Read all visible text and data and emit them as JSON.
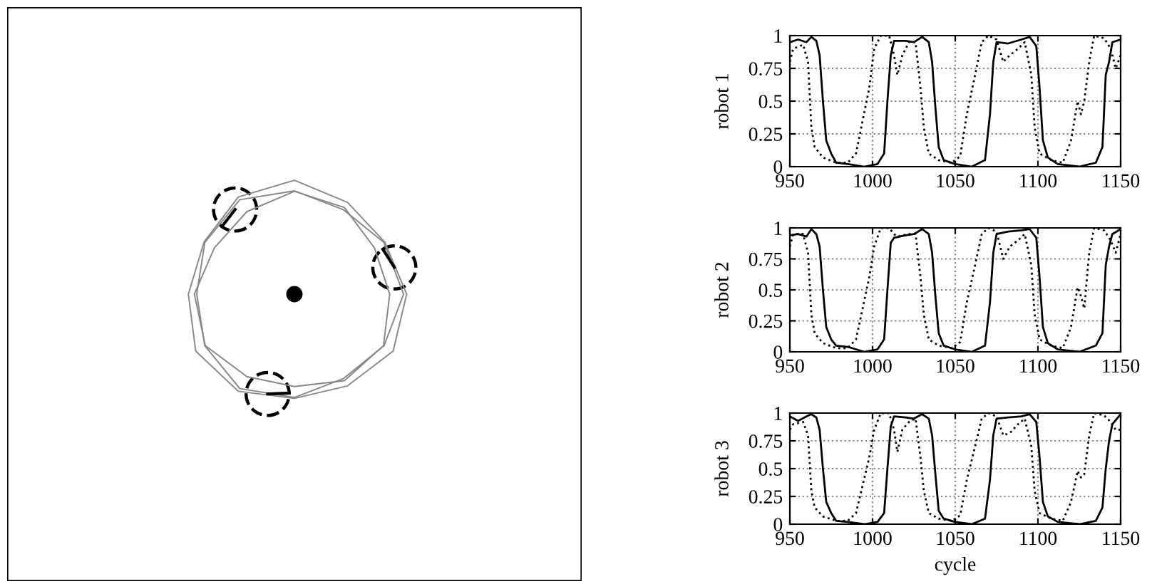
{
  "chart_data": [
    {
      "type": "line",
      "ylabel": "robot 1",
      "xlim": [
        950,
        1150
      ],
      "ylim": [
        0,
        1
      ],
      "xticks": [
        950,
        1000,
        1050,
        1100,
        1150
      ],
      "yticks": [
        0,
        0.25,
        0.5,
        0.75,
        1
      ],
      "grid": true,
      "series": [
        {
          "color": "#000000",
          "line_style": "solid",
          "x": [
            950,
            955,
            960,
            963,
            966,
            968,
            970,
            972,
            975,
            978,
            985,
            995,
            1003,
            1007,
            1009,
            1011,
            1013,
            1020,
            1025,
            1030,
            1034,
            1036,
            1038,
            1040,
            1043,
            1050,
            1060,
            1068,
            1071,
            1073,
            1075,
            1082,
            1090,
            1095,
            1099,
            1101,
            1103,
            1106,
            1112,
            1125,
            1135,
            1139,
            1141,
            1143,
            1145,
            1150
          ],
          "values": [
            0.95,
            0.97,
            0.95,
            0.99,
            0.96,
            0.85,
            0.5,
            0.2,
            0.1,
            0.03,
            0.02,
            0.0,
            0.02,
            0.1,
            0.5,
            0.85,
            0.96,
            0.96,
            0.95,
            0.99,
            0.95,
            0.8,
            0.45,
            0.15,
            0.05,
            0.02,
            0.0,
            0.05,
            0.4,
            0.8,
            0.95,
            0.94,
            0.97,
            0.99,
            0.92,
            0.6,
            0.2,
            0.07,
            0.02,
            0.0,
            0.03,
            0.15,
            0.7,
            0.8,
            0.95,
            0.97
          ]
        },
        {
          "color": "#000000",
          "line_style": "dotted",
          "x": [
            950,
            952,
            958,
            961,
            963,
            965,
            970,
            978,
            985,
            990,
            994,
            998,
            1001,
            1005,
            1010,
            1013,
            1015,
            1018,
            1022,
            1026,
            1029,
            1031,
            1034,
            1040,
            1048,
            1053,
            1057,
            1062,
            1066,
            1070,
            1075,
            1079,
            1083,
            1088,
            1092,
            1096,
            1098,
            1101,
            1108,
            1115,
            1120,
            1124,
            1126,
            1128,
            1131,
            1134,
            1140,
            1144,
            1147,
            1150
          ],
          "values": [
            0.8,
            0.9,
            0.93,
            0.8,
            0.3,
            0.15,
            0.07,
            0.03,
            0.03,
            0.1,
            0.35,
            0.6,
            0.9,
            1.0,
            1.0,
            0.85,
            0.7,
            0.85,
            0.95,
            0.95,
            0.6,
            0.3,
            0.1,
            0.05,
            0.03,
            0.08,
            0.4,
            0.7,
            0.95,
            1.0,
            0.97,
            0.8,
            0.85,
            0.9,
            0.95,
            0.7,
            0.3,
            0.1,
            0.05,
            0.03,
            0.2,
            0.5,
            0.4,
            0.5,
            0.8,
            1.0,
            0.98,
            0.9,
            0.75,
            0.85
          ]
        }
      ]
    },
    {
      "type": "line",
      "ylabel": "robot 2",
      "xlim": [
        950,
        1150
      ],
      "ylim": [
        0,
        1
      ],
      "xticks": [
        950,
        1000,
        1050,
        1100,
        1150
      ],
      "yticks": [
        0,
        0.25,
        0.5,
        0.75,
        1
      ],
      "grid": true,
      "series": [
        {
          "color": "#000000",
          "line_style": "solid",
          "x": [
            950,
            955,
            960,
            963,
            966,
            968,
            970,
            972,
            975,
            978,
            985,
            995,
            1003,
            1007,
            1009,
            1011,
            1013,
            1020,
            1025,
            1030,
            1034,
            1036,
            1038,
            1040,
            1043,
            1050,
            1060,
            1068,
            1071,
            1073,
            1075,
            1082,
            1090,
            1095,
            1099,
            1101,
            1103,
            1106,
            1112,
            1125,
            1135,
            1139,
            1141,
            1143,
            1145,
            1150
          ],
          "values": [
            0.94,
            0.95,
            0.93,
            0.99,
            0.95,
            0.85,
            0.5,
            0.2,
            0.1,
            0.05,
            0.04,
            0.0,
            0.02,
            0.1,
            0.5,
            0.88,
            0.92,
            0.94,
            0.95,
            0.99,
            0.95,
            0.8,
            0.45,
            0.15,
            0.05,
            0.02,
            0.0,
            0.05,
            0.4,
            0.8,
            0.95,
            0.97,
            0.98,
            0.99,
            0.92,
            0.6,
            0.2,
            0.07,
            0.02,
            0.0,
            0.05,
            0.15,
            0.7,
            0.85,
            0.95,
            0.99
          ]
        },
        {
          "color": "#000000",
          "line_style": "dotted",
          "x": [
            950,
            952,
            958,
            961,
            963,
            965,
            970,
            978,
            985,
            990,
            994,
            998,
            1001,
            1005,
            1010,
            1013,
            1015,
            1018,
            1022,
            1026,
            1029,
            1031,
            1034,
            1040,
            1048,
            1053,
            1057,
            1062,
            1066,
            1070,
            1075,
            1079,
            1083,
            1088,
            1092,
            1096,
            1098,
            1101,
            1108,
            1115,
            1120,
            1124,
            1126,
            1128,
            1131,
            1134,
            1140,
            1144,
            1147,
            1150
          ],
          "values": [
            0.85,
            0.95,
            0.95,
            0.8,
            0.3,
            0.15,
            0.07,
            0.03,
            0.03,
            0.1,
            0.35,
            0.6,
            0.85,
            1.0,
            1.0,
            0.95,
            0.93,
            0.94,
            0.95,
            0.95,
            0.6,
            0.3,
            0.1,
            0.05,
            0.03,
            0.08,
            0.4,
            0.7,
            0.95,
            1.0,
            0.97,
            0.75,
            0.85,
            0.9,
            0.95,
            0.7,
            0.3,
            0.1,
            0.05,
            0.03,
            0.2,
            0.52,
            0.45,
            0.35,
            0.8,
            1.0,
            0.98,
            0.9,
            0.8,
            0.95
          ]
        }
      ]
    },
    {
      "type": "line",
      "ylabel": "robot 3",
      "xlabel": "cycle",
      "xlim": [
        950,
        1150
      ],
      "ylim": [
        0,
        1
      ],
      "xticks": [
        950,
        1000,
        1050,
        1100,
        1150
      ],
      "yticks": [
        0,
        0.25,
        0.5,
        0.75,
        1
      ],
      "grid": true,
      "series": [
        {
          "color": "#000000",
          "line_style": "solid",
          "x": [
            950,
            955,
            960,
            963,
            966,
            968,
            970,
            972,
            975,
            978,
            985,
            995,
            1003,
            1007,
            1009,
            1011,
            1013,
            1020,
            1025,
            1030,
            1034,
            1036,
            1038,
            1040,
            1043,
            1050,
            1060,
            1068,
            1071,
            1073,
            1075,
            1082,
            1090,
            1095,
            1099,
            1101,
            1103,
            1106,
            1112,
            1125,
            1135,
            1139,
            1141,
            1143,
            1145,
            1150
          ],
          "values": [
            0.97,
            0.93,
            0.97,
            0.99,
            0.96,
            0.85,
            0.5,
            0.2,
            0.1,
            0.03,
            0.02,
            0.0,
            0.02,
            0.1,
            0.5,
            0.88,
            0.97,
            0.96,
            0.95,
            0.99,
            0.95,
            0.8,
            0.45,
            0.12,
            0.05,
            0.02,
            0.0,
            0.05,
            0.4,
            0.8,
            0.95,
            0.96,
            0.97,
            0.99,
            0.92,
            0.6,
            0.2,
            0.07,
            0.02,
            0.0,
            0.03,
            0.15,
            0.5,
            0.75,
            0.9,
            0.99
          ]
        },
        {
          "color": "#000000",
          "line_style": "dotted",
          "x": [
            950,
            952,
            958,
            961,
            963,
            965,
            970,
            978,
            985,
            990,
            994,
            998,
            1001,
            1005,
            1010,
            1013,
            1015,
            1018,
            1022,
            1026,
            1029,
            1031,
            1034,
            1040,
            1048,
            1053,
            1057,
            1062,
            1066,
            1070,
            1075,
            1079,
            1083,
            1088,
            1092,
            1096,
            1098,
            1101,
            1108,
            1115,
            1120,
            1124,
            1126,
            1128,
            1131,
            1134,
            1140,
            1144,
            1147,
            1150
          ],
          "values": [
            0.85,
            0.9,
            0.92,
            0.8,
            0.3,
            0.15,
            0.07,
            0.03,
            0.03,
            0.1,
            0.35,
            0.6,
            0.85,
            1.0,
            1.0,
            0.85,
            0.65,
            0.85,
            0.92,
            0.95,
            0.6,
            0.3,
            0.1,
            0.05,
            0.03,
            0.08,
            0.4,
            0.7,
            0.95,
            1.0,
            0.97,
            0.8,
            0.82,
            0.9,
            0.95,
            0.7,
            0.3,
            0.1,
            0.05,
            0.03,
            0.2,
            0.48,
            0.42,
            0.45,
            0.8,
            1.0,
            0.98,
            0.92,
            0.85,
            0.85
          ]
        }
      ]
    }
  ]
}
